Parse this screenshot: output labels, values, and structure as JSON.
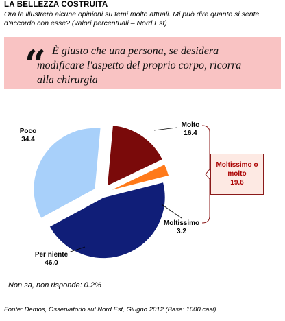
{
  "header": {
    "title": "LA BELLEZZA COSTRUITA",
    "subtitle": "Ora le illustrerò alcune opinioni su temi molto attuali. Mi può dire quanto si sente d'accordo con esse? (valori percentuali – Nord Est)"
  },
  "quote": {
    "mark": "“",
    "line1": "È giusto che una persona, se desidera",
    "line2": "modificare l'aspetto del proprio corpo, ricorra",
    "line3": "alla chirurgia"
  },
  "chart_data": {
    "type": "pie",
    "unit": "%",
    "slices": [
      {
        "label": "Molto",
        "value": 16.4,
        "value_label": "16.4",
        "color": "#7a0a0a"
      },
      {
        "label": "Moltissimo",
        "value": 3.2,
        "value_label": "3.2",
        "color": "#ff7a1a"
      },
      {
        "label": "Per niente",
        "value": 46.0,
        "value_label": "46.0",
        "color": "#101e78"
      },
      {
        "label": "Poco",
        "value": 34.4,
        "value_label": "34.4",
        "color": "#a8d0fa"
      }
    ],
    "callout": {
      "label": "Moltissimo o molto",
      "value_label": "19.6",
      "value": 19.6
    }
  },
  "footer": {
    "note": "Non sa, non risponde: 0.2%",
    "source": "Fonte: Demos, Osservatorio sul Nord Est, Giugno 2012 (Base: 1000 casi)"
  }
}
